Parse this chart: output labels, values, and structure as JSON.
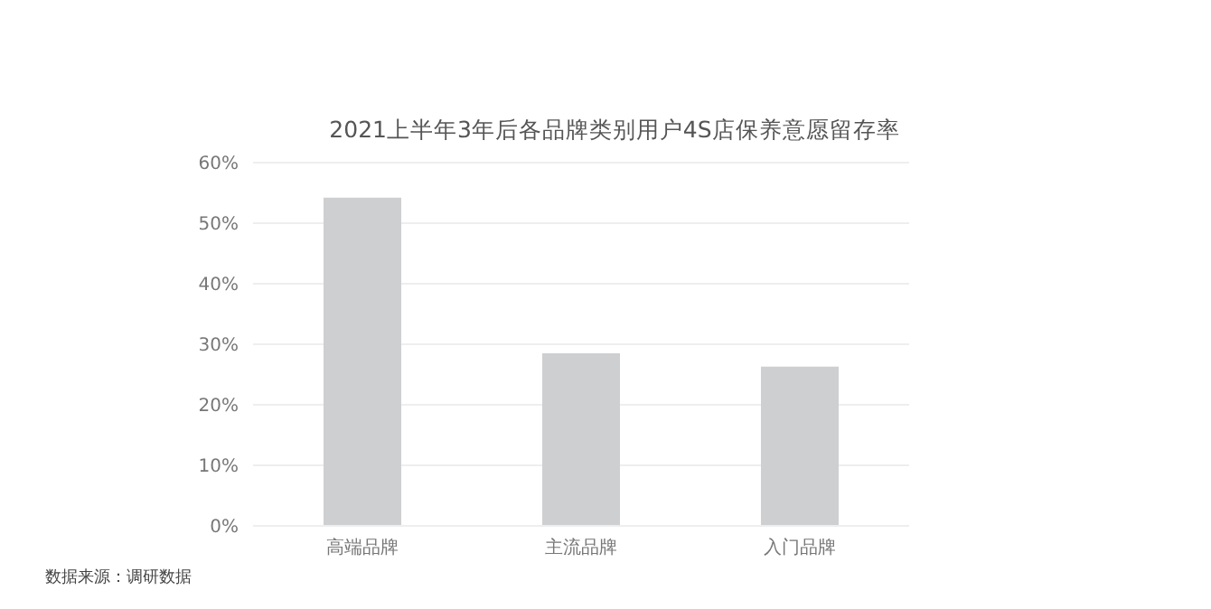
{
  "chart_data": {
    "type": "bar",
    "title": "2021上半年3年后各品牌类别用户4S店保养意愿留存率",
    "categories": [
      "高端品牌",
      "主流品牌",
      "入门品牌"
    ],
    "values": [
      54.2,
      28.5,
      26.3
    ],
    "color": "#cdcfd1",
    "ylim": [
      0,
      60
    ],
    "yticks": [
      {
        "value": 0,
        "label": "0%"
      },
      {
        "value": 10,
        "label": "10%"
      },
      {
        "value": 20,
        "label": "20%"
      },
      {
        "value": 30,
        "label": "30%"
      },
      {
        "value": 40,
        "label": "40%"
      },
      {
        "value": 50,
        "label": "50%"
      },
      {
        "value": 60,
        "label": "60%"
      }
    ],
    "grid": "y",
    "legend": false,
    "annotations": [
      "数据来源：调研数据"
    ]
  }
}
